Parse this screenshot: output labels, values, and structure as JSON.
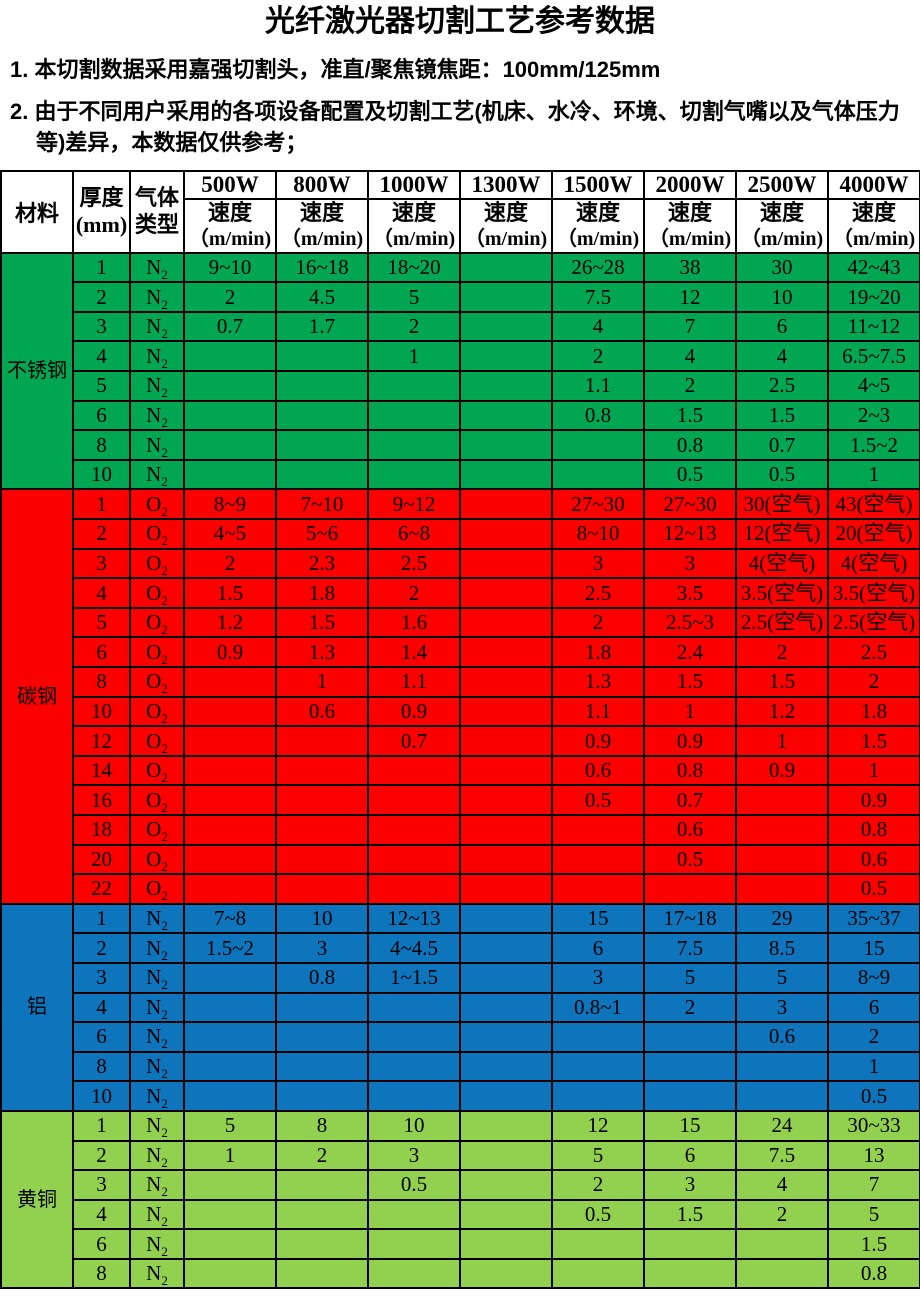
{
  "title": "光纤激光器切割工艺参考数据",
  "notes": [
    "1. 本切割数据采用嘉强切割头，准直/聚焦镜焦距：100mm/125mm",
    "2. 由于不同用户采用的各项设备配置及切割工艺(机床、水冷、环境、切割气嘴以及气体压力等)差异，本数据仅供参考；"
  ],
  "table": {
    "header": {
      "material": "材料",
      "thickness_line1": "厚度",
      "thickness_line2": "(mm)",
      "gas_line1": "气体",
      "gas_line2": "类型",
      "powers": [
        "500W",
        "800W",
        "1000W",
        "1300W",
        "1500W",
        "2000W",
        "2500W",
        "4000W"
      ],
      "speed_label": "速度",
      "speed_unit": "（m/min)"
    },
    "section_colors": {
      "stainless_steel": "#00a651",
      "carbon_steel": "#fc0000",
      "aluminum": "#0e74bc",
      "brass": "#92d050"
    },
    "sections": [
      {
        "material": "不锈钢",
        "color": "#00a651",
        "rows": [
          {
            "thickness": "1",
            "gas": "N2",
            "speeds": [
              "9~10",
              "16~18",
              "18~20",
              "",
              "26~28",
              "38",
              "30",
              "42~43"
            ]
          },
          {
            "thickness": "2",
            "gas": "N2",
            "speeds": [
              "2",
              "4.5",
              "5",
              "",
              "7.5",
              "12",
              "10",
              "19~20"
            ]
          },
          {
            "thickness": "3",
            "gas": "N2",
            "speeds": [
              "0.7",
              "1.7",
              "2",
              "",
              "4",
              "7",
              "6",
              "11~12"
            ]
          },
          {
            "thickness": "4",
            "gas": "N2",
            "speeds": [
              "",
              "",
              "1",
              "",
              "2",
              "4",
              "4",
              "6.5~7.5"
            ]
          },
          {
            "thickness": "5",
            "gas": "N2",
            "speeds": [
              "",
              "",
              "",
              "",
              "1.1",
              "2",
              "2.5",
              "4~5"
            ]
          },
          {
            "thickness": "6",
            "gas": "N2",
            "speeds": [
              "",
              "",
              "",
              "",
              "0.8",
              "1.5",
              "1.5",
              "2~3"
            ]
          },
          {
            "thickness": "8",
            "gas": "N2",
            "speeds": [
              "",
              "",
              "",
              "",
              "",
              "0.8",
              "0.7",
              "1.5~2"
            ]
          },
          {
            "thickness": "10",
            "gas": "N2",
            "speeds": [
              "",
              "",
              "",
              "",
              "",
              "0.5",
              "0.5",
              "1"
            ]
          }
        ]
      },
      {
        "material": "碳钢",
        "color": "#fc0000",
        "rows": [
          {
            "thickness": "1",
            "gas": "O2",
            "speeds": [
              "8~9",
              "7~10",
              "9~12",
              "",
              "27~30",
              "27~30",
              "30(空气)",
              "43(空气)"
            ]
          },
          {
            "thickness": "2",
            "gas": "O2",
            "speeds": [
              "4~5",
              "5~6",
              "6~8",
              "",
              "8~10",
              "12~13",
              "12(空气)",
              "20(空气)"
            ]
          },
          {
            "thickness": "3",
            "gas": "O2",
            "speeds": [
              "2",
              "2.3",
              "2.5",
              "",
              "3",
              "3",
              "4(空气)",
              "4(空气)"
            ]
          },
          {
            "thickness": "4",
            "gas": "O2",
            "speeds": [
              "1.5",
              "1.8",
              "2",
              "",
              "2.5",
              "3.5",
              "3.5(空气)",
              "3.5(空气)"
            ]
          },
          {
            "thickness": "5",
            "gas": "O2",
            "speeds": [
              "1.2",
              "1.5",
              "1.6",
              "",
              "2",
              "2.5~3",
              "2.5(空气)",
              "2.5(空气)"
            ]
          },
          {
            "thickness": "6",
            "gas": "O2",
            "speeds": [
              "0.9",
              "1.3",
              "1.4",
              "",
              "1.8",
              "2.4",
              "2",
              "2.5"
            ]
          },
          {
            "thickness": "8",
            "gas": "O2",
            "speeds": [
              "",
              "1",
              "1.1",
              "",
              "1.3",
              "1.5",
              "1.5",
              "2"
            ]
          },
          {
            "thickness": "10",
            "gas": "O2",
            "speeds": [
              "",
              "0.6",
              "0.9",
              "",
              "1.1",
              "1",
              "1.2",
              "1.8"
            ]
          },
          {
            "thickness": "12",
            "gas": "O2",
            "speeds": [
              "",
              "",
              "0.7",
              "",
              "0.9",
              "0.9",
              "1",
              "1.5"
            ]
          },
          {
            "thickness": "14",
            "gas": "O2",
            "speeds": [
              "",
              "",
              "",
              "",
              "0.6",
              "0.8",
              "0.9",
              "1"
            ]
          },
          {
            "thickness": "16",
            "gas": "O2",
            "speeds": [
              "",
              "",
              "",
              "",
              "0.5",
              "0.7",
              "",
              "0.9"
            ]
          },
          {
            "thickness": "18",
            "gas": "O2",
            "speeds": [
              "",
              "",
              "",
              "",
              "",
              "0.6",
              "",
              "0.8"
            ]
          },
          {
            "thickness": "20",
            "gas": "O2",
            "speeds": [
              "",
              "",
              "",
              "",
              "",
              "0.5",
              "",
              "0.6"
            ]
          },
          {
            "thickness": "22",
            "gas": "O2",
            "speeds": [
              "",
              "",
              "",
              "",
              "",
              "",
              "",
              "0.5"
            ]
          }
        ]
      },
      {
        "material": "铝",
        "color": "#0e74bc",
        "rows": [
          {
            "thickness": "1",
            "gas": "N2",
            "speeds": [
              "7~8",
              "10",
              "12~13",
              "",
              "15",
              "17~18",
              "29",
              "35~37"
            ]
          },
          {
            "thickness": "2",
            "gas": "N2",
            "speeds": [
              "1.5~2",
              "3",
              "4~4.5",
              "",
              "6",
              "7.5",
              "8.5",
              "15"
            ]
          },
          {
            "thickness": "3",
            "gas": "N2",
            "speeds": [
              "",
              "0.8",
              "1~1.5",
              "",
              "3",
              "5",
              "5",
              "8~9"
            ]
          },
          {
            "thickness": "4",
            "gas": "N2",
            "speeds": [
              "",
              "",
              "",
              "",
              "0.8~1",
              "2",
              "3",
              "6"
            ]
          },
          {
            "thickness": "6",
            "gas": "N2",
            "speeds": [
              "",
              "",
              "",
              "",
              "",
              "",
              "0.6",
              "2"
            ]
          },
          {
            "thickness": "8",
            "gas": "N2",
            "speeds": [
              "",
              "",
              "",
              "",
              "",
              "",
              "",
              "1"
            ]
          },
          {
            "thickness": "10",
            "gas": "N2",
            "speeds": [
              "",
              "",
              "",
              "",
              "",
              "",
              "",
              "0.5"
            ]
          }
        ]
      },
      {
        "material": "黄铜",
        "color": "#92d050",
        "rows": [
          {
            "thickness": "1",
            "gas": "N2",
            "speeds": [
              "5",
              "8",
              "10",
              "",
              "12",
              "15",
              "24",
              "30~33"
            ]
          },
          {
            "thickness": "2",
            "gas": "N2",
            "speeds": [
              "1",
              "2",
              "3",
              "",
              "5",
              "6",
              "7.5",
              "13"
            ]
          },
          {
            "thickness": "3",
            "gas": "N2",
            "speeds": [
              "",
              "",
              "0.5",
              "",
              "2",
              "3",
              "4",
              "7"
            ]
          },
          {
            "thickness": "4",
            "gas": "N2",
            "speeds": [
              "",
              "",
              "",
              "",
              "0.5",
              "1.5",
              "2",
              "5"
            ]
          },
          {
            "thickness": "6",
            "gas": "N2",
            "speeds": [
              "",
              "",
              "",
              "",
              "",
              "",
              "",
              "1.5"
            ]
          },
          {
            "thickness": "8",
            "gas": "N2",
            "speeds": [
              "",
              "",
              "",
              "",
              "",
              "",
              "",
              "0.8"
            ]
          }
        ]
      }
    ]
  }
}
